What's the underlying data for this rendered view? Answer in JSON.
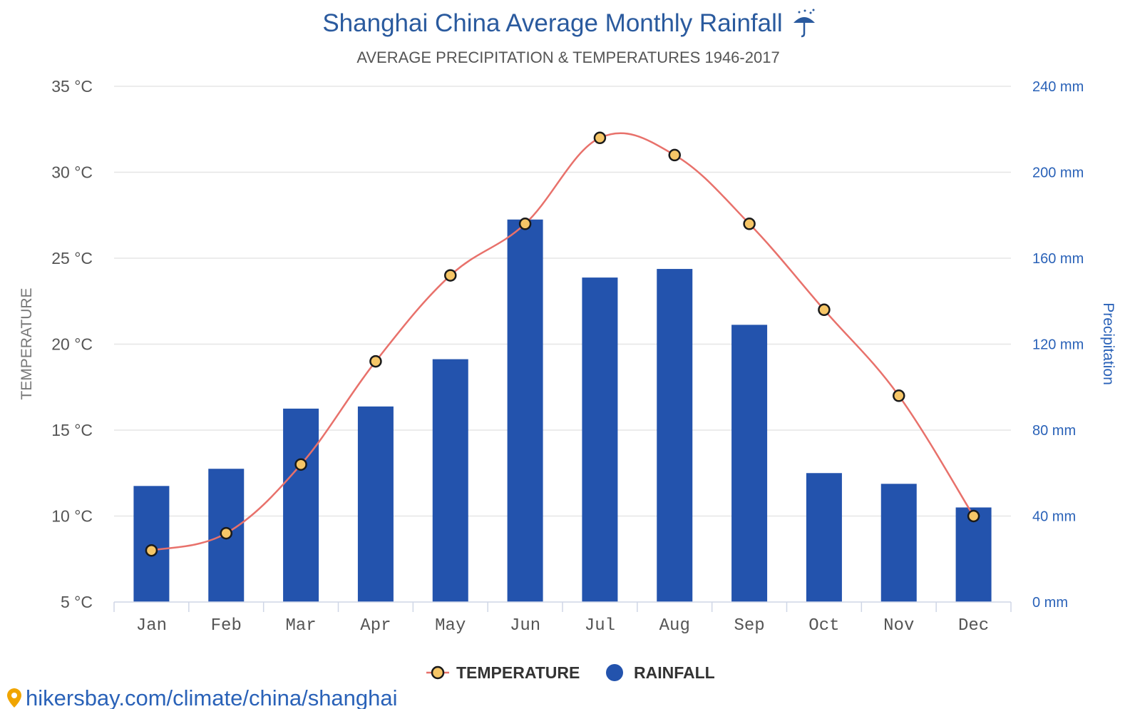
{
  "header": {
    "title": "Shanghai China Average Monthly Rainfall",
    "subtitle": "AVERAGE PRECIPITATION & TEMPERATURES 1946-2017",
    "title_icon": "umbrella-rain-icon"
  },
  "footer": {
    "source_text": "hikersbay.com/climate/china/shanghai",
    "source_icon": "map-pin-icon"
  },
  "colors": {
    "bar": "#2353ad",
    "line": "#e8716b",
    "marker_fill": "#f6c667",
    "title": "#2a5a9e",
    "right_axis": "#2a62b8"
  },
  "chart_data": {
    "type": "bar",
    "title": "Shanghai China Average Monthly Rainfall",
    "subtitle": "AVERAGE PRECIPITATION & TEMPERATURES 1946-2017",
    "categories": [
      "Jan",
      "Feb",
      "Mar",
      "Apr",
      "May",
      "Jun",
      "Jul",
      "Aug",
      "Sep",
      "Oct",
      "Nov",
      "Dec"
    ],
    "series": [
      {
        "name": "RAINFALL",
        "type": "bar",
        "axis": "right",
        "unit": "mm",
        "values": [
          54,
          62,
          90,
          91,
          113,
          178,
          151,
          155,
          129,
          60,
          55,
          44
        ]
      },
      {
        "name": "TEMPERATURE",
        "type": "line",
        "axis": "left",
        "unit": "°C",
        "values": [
          8,
          9,
          13,
          19,
          24,
          27,
          32,
          31,
          27,
          22,
          17,
          10
        ]
      }
    ],
    "y_left": {
      "label": "TEMPERATURE",
      "range": [
        5,
        35
      ],
      "ticks": [
        35,
        30,
        25,
        20,
        15,
        10,
        5
      ],
      "tick_labels": [
        "35 °C",
        "30 °C",
        "25 °C",
        "20 °C",
        "15 °C",
        "10 °C",
        "5 °C"
      ]
    },
    "y_right": {
      "label": "Precipitation",
      "range": [
        0,
        240
      ],
      "ticks": [
        240,
        200,
        160,
        120,
        80,
        40,
        0
      ],
      "tick_labels": [
        "240 mm",
        "200 mm",
        "160 mm",
        "120 mm",
        "80 mm",
        "40 mm",
        "0 mm"
      ]
    },
    "legend": {
      "position": "bottom-center",
      "entries": [
        "TEMPERATURE",
        "RAINFALL"
      ]
    },
    "grid": true
  }
}
